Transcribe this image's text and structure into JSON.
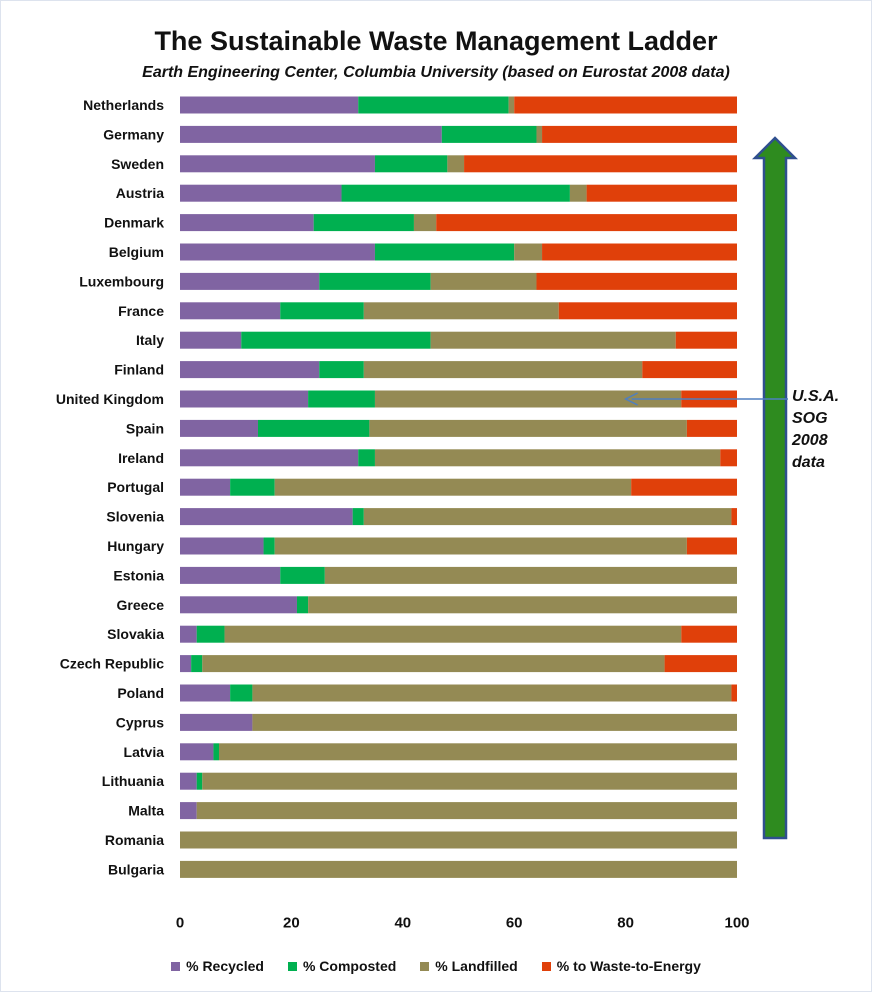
{
  "chart_data": {
    "type": "bar",
    "orientation": "horizontal",
    "stacked": true,
    "title": "The Sustainable Waste Management Ladder",
    "subtitle": "Earth Engineering Center, Columbia University (based on Eurostat 2008 data)",
    "xlim": [
      0,
      100
    ],
    "xticks": [
      "0",
      "20",
      "40",
      "60",
      "80",
      "100"
    ],
    "grid": false,
    "legend_position": "bottom",
    "categories": [
      "Netherlands",
      "Germany",
      "Sweden",
      "Austria",
      "Denmark",
      "Belgium",
      "Luxembourg",
      "France",
      "Italy",
      "Finland",
      "United Kingdom",
      "Spain",
      "Ireland",
      "Portugal",
      "Slovenia",
      "Hungary",
      "Estonia",
      "Greece",
      "Slovakia",
      "Czech Republic",
      "Poland",
      "Cyprus",
      "Latvia",
      "Lithuania",
      "Malta",
      "Romania",
      "Bulgaria"
    ],
    "series": [
      {
        "name": "% Recycled",
        "color": "#8064a2",
        "values": [
          32,
          47,
          35,
          29,
          24,
          35,
          25,
          18,
          11,
          25,
          23,
          14,
          32,
          9,
          31,
          15,
          18,
          21,
          3,
          2,
          9,
          13,
          6,
          3,
          3,
          0,
          0
        ]
      },
      {
        "name": "% Composted",
        "color": "#00b050",
        "values": [
          27,
          17,
          13,
          41,
          18,
          25,
          20,
          15,
          34,
          8,
          12,
          20,
          3,
          8,
          2,
          2,
          8,
          2,
          5,
          2,
          4,
          0,
          1,
          1,
          0,
          0,
          0
        ]
      },
      {
        "name": "% Landfilled",
        "color": "#948a54",
        "values": [
          1,
          1,
          3,
          3,
          4,
          5,
          19,
          35,
          44,
          50,
          55,
          57,
          62,
          64,
          66,
          74,
          74,
          77,
          82,
          83,
          86,
          87,
          93,
          96,
          97,
          100,
          100
        ]
      },
      {
        "name": "% to Waste-to-Energy",
        "color": "#e0400a",
        "values": [
          40,
          35,
          49,
          27,
          54,
          35,
          36,
          32,
          11,
          17,
          10,
          9,
          3,
          19,
          1,
          9,
          0,
          0,
          10,
          13,
          1,
          0,
          0,
          0,
          0,
          0,
          0
        ]
      }
    ],
    "annotation": {
      "lines": [
        "U.S.A.",
        "SOG",
        "2008",
        "data"
      ],
      "points_to_value": 80,
      "points_to_category": "United Kingdom"
    },
    "arrow_color": "#2e8b1f"
  }
}
